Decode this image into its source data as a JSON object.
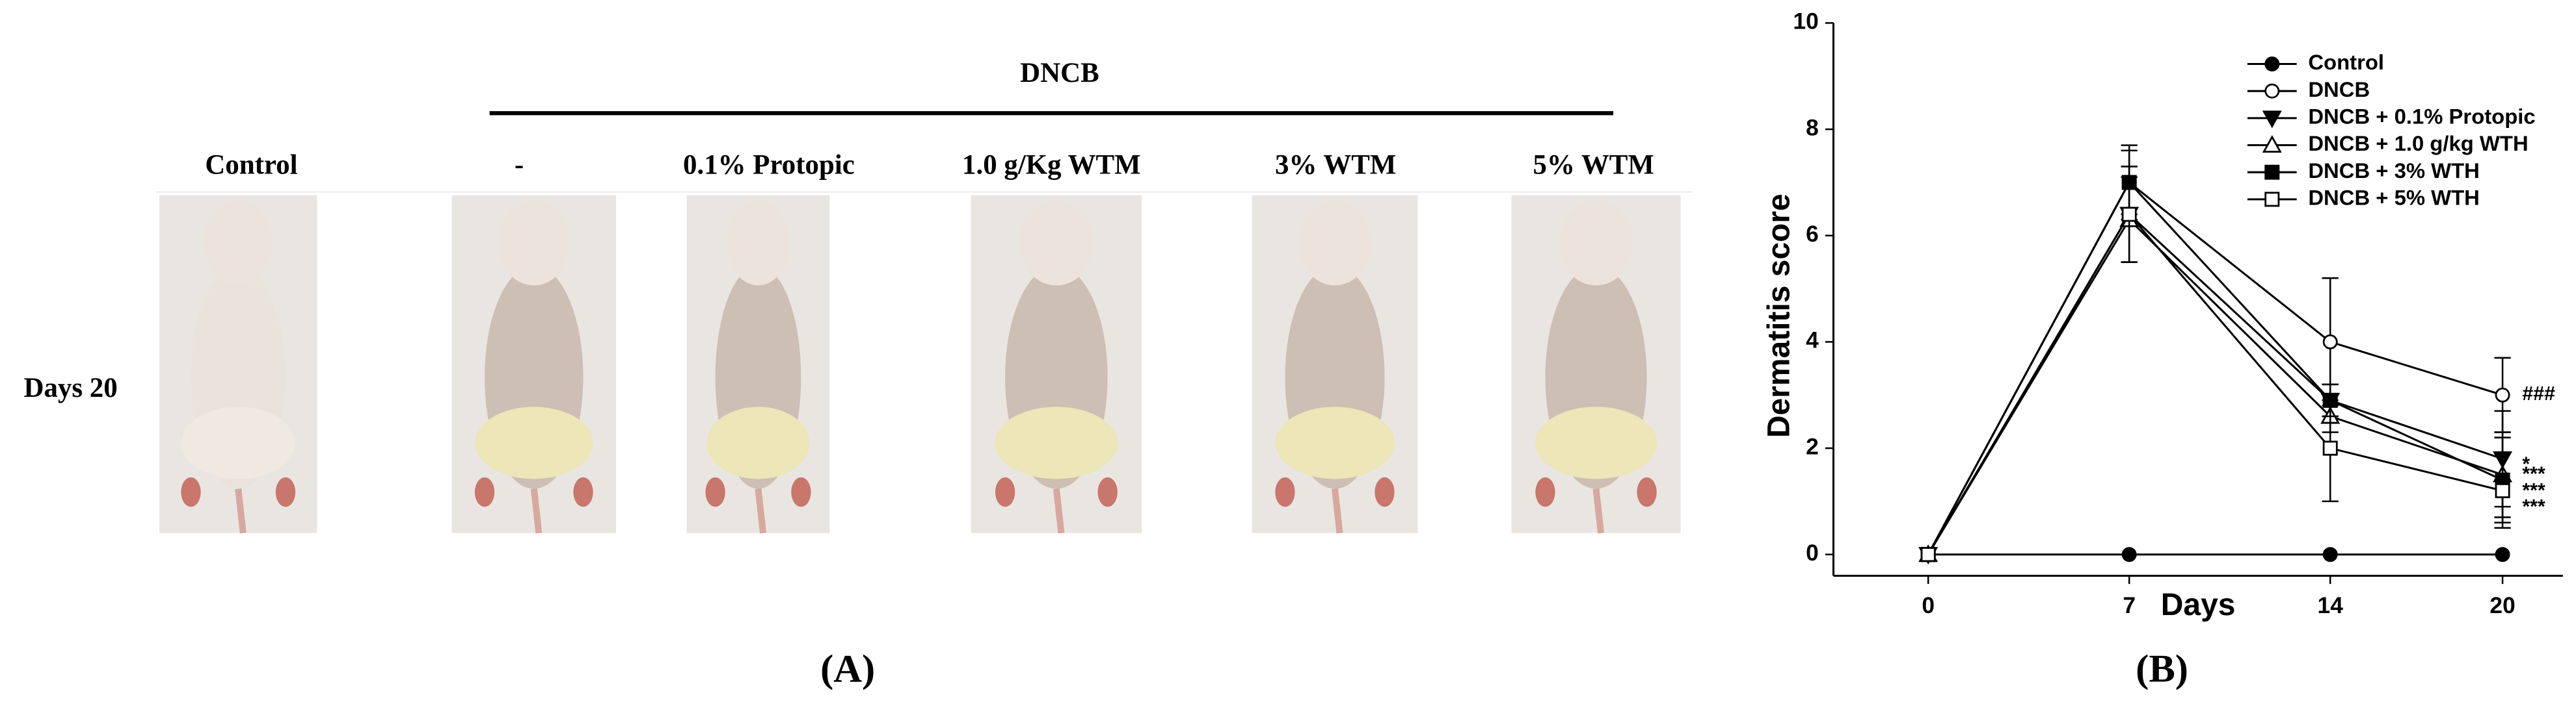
{
  "panel_a": {
    "group_label": "DNCB",
    "columns": [
      "Control",
      "-",
      "0.1% Protopic",
      "1.0 g/Kg WTM",
      "3% WTM",
      "5% WTM"
    ],
    "row_label": "Days 20",
    "panel_label": "(A)"
  },
  "chart_data": {
    "type": "line",
    "panel_label": "(B)",
    "x_label": "Days",
    "y_label": "Dermatitis score",
    "x": [
      0,
      7,
      14,
      20
    ],
    "xlim": [
      -3.3,
      22.1
    ],
    "xticks": [
      0,
      7,
      14,
      20
    ],
    "ylim": [
      -0.4,
      10
    ],
    "yticks": [
      0,
      2,
      4,
      6,
      8,
      10
    ],
    "series": [
      {
        "name": "Control",
        "color": "#000000",
        "marker": "circle",
        "filled": true,
        "values": [
          0,
          0,
          0,
          0
        ],
        "errors": [
          0,
          0,
          0,
          0
        ]
      },
      {
        "name": "DNCB",
        "color": "#000000",
        "marker": "circle",
        "filled": false,
        "values": [
          0,
          7,
          4,
          3
        ],
        "errors": [
          0,
          0.7,
          1.2,
          0.7
        ]
      },
      {
        "name": "DNCB + 0.1% Protopic",
        "color": "#000000",
        "marker": "triangle-down",
        "filled": true,
        "values": [
          0,
          6.4,
          2.9,
          1.8
        ],
        "errors": [
          0,
          0.9,
          0.3,
          0.9
        ]
      },
      {
        "name": "DNCB + 1.0 g/kg WTH",
        "color": "#000000",
        "marker": "triangle-up",
        "filled": false,
        "values": [
          0,
          6.3,
          2.6,
          1.5
        ],
        "errors": [
          0,
          0.8,
          0.3,
          0.8
        ]
      },
      {
        "name": "DNCB + 3% WTH",
        "color": "#000000",
        "marker": "square",
        "filled": true,
        "values": [
          0,
          7,
          2.9,
          1.4
        ],
        "errors": [
          0,
          0.6,
          0.3,
          0.8
        ]
      },
      {
        "name": "DNCB + 5% WTH",
        "color": "#000000",
        "marker": "square",
        "filled": false,
        "values": [
          0,
          6.4,
          2,
          1.2
        ],
        "errors": [
          0,
          0.9,
          1,
          0.7
        ]
      }
    ],
    "annotations": [
      "###",
      "*",
      "***",
      "***",
      "***"
    ]
  }
}
